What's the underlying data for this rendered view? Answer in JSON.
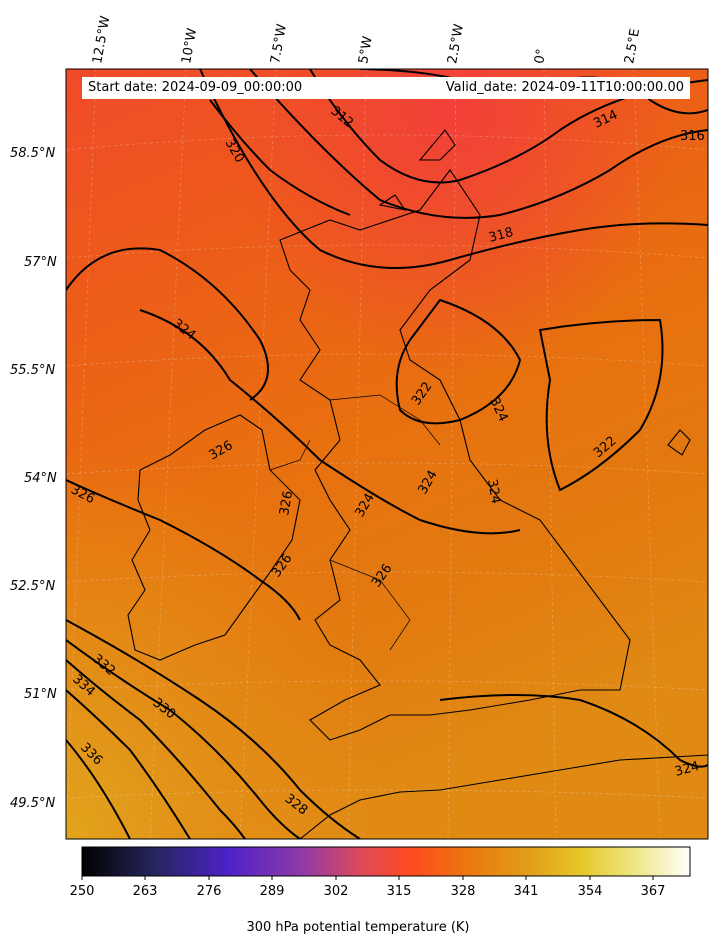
{
  "header": {
    "start_date": "Start date: 2024-09-09_00:00:00",
    "valid_date": "Valid_date: 2024-09-11T10:00:00.00"
  },
  "axes": {
    "lon_labels": [
      "12.5°W",
      "10°W",
      "7.5°W",
      "5°W",
      "2.5°W",
      "0°",
      "2.5°E"
    ],
    "lat_labels": [
      "58.5°N",
      "57°N",
      "55.5°N",
      "54°N",
      "52.5°N",
      "51°N",
      "49.5°N"
    ]
  },
  "contours": {
    "color": "#000000",
    "labels": [
      "312",
      "314",
      "316",
      "318",
      "320",
      "322",
      "324",
      "326",
      "328",
      "330",
      "332",
      "334",
      "336"
    ]
  },
  "colorbar": {
    "label": "300 hPa potential temperature (K)",
    "ticks": [
      "250",
      "263",
      "276",
      "289",
      "302",
      "315",
      "328",
      "341",
      "354",
      "367"
    ],
    "range": [
      250,
      372
    ],
    "colormap": "CMRmap"
  },
  "chart_data": {
    "type": "heatmap",
    "title": "",
    "field": "300 hPa potential temperature (K)",
    "colorbar_range": [
      250,
      372
    ],
    "contour_levels": [
      312,
      314,
      316,
      318,
      320,
      322,
      324,
      326,
      328,
      330,
      332,
      334,
      336
    ],
    "lon_range": [
      -12.5,
      2.5
    ],
    "lat_range": [
      49.5,
      58.5
    ]
  }
}
